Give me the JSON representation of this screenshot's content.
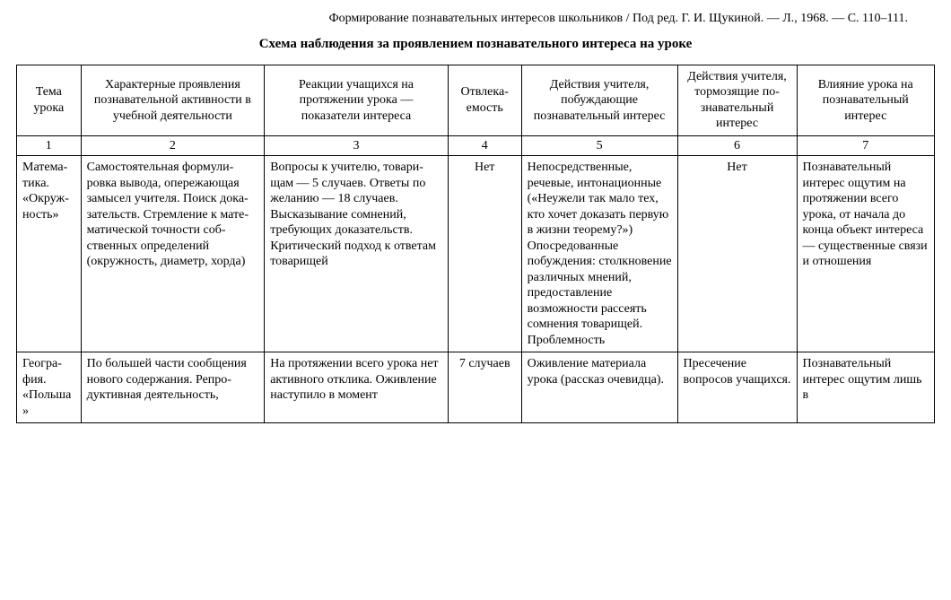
{
  "citation": "Формирование познавательных интересов школьников / Под ред. Г. И. Щукиной. — Л., 1968. — С. 110–111.",
  "title": "Схема наблюдения за проявлением познавательного интереса на уроке",
  "headers": {
    "h1": "Тема урока",
    "h2": "Характерные проявления познавательной активности в учебной деятельности",
    "h3": "Реакции учащихся на протяжении урока — показатели интереса",
    "h4": "Отвлека­емость",
    "h5": "Действия учителя, побуждающие познавательный интерес",
    "h6": "Действия учителя, тор­мозящие по­знавательный интерес",
    "h7": "Влияние урока на познаватель­ный интерес"
  },
  "nums": {
    "n1": "1",
    "n2": "2",
    "n3": "3",
    "n4": "4",
    "n5": "5",
    "n6": "6",
    "n7": "7"
  },
  "rows": [
    {
      "c1": "Матема­тика. «Окруж­ность»",
      "c2": "Самостоятельная формули­ровка вывода, опережающая замысел учителя. Поиск дока­зательств. Стремление к мате­матической точности соб­ственных определений (окружность, диаметр, хорда)",
      "c3": "Вопросы к учителю, товари­щам — 5 случаев. Ответы по желанию — 18 случаев. Высказывание сомнений, требующих доказательств. Критический подход к ответам товарищей",
      "c4": "Нет",
      "c5": "Непосредствен­ные, речевые, интонационные («Неужели так мало тех, кто хочет доказать первую в жизни теорему?») Опосредованные побуждения: столкновение раз­личных мнений, предоставление возможности рас­сеять сомнения товарищей. Проб­лемность",
      "c6": "Нет",
      "c7": "Познаватель­ный интерес ощутим на про­тяжении всего урока, от нача­ла до конца объект интере­са — существен­ные связи и отношения"
    },
    {
      "c1": "Геогра­фия. «Польша»",
      "c2": "По большей части сообщения нового содержания. Репро­дуктивная деятельность,",
      "c3": "На протяжении всего урока нет активного отклика. Ожив­ление наступило в момент",
      "c4": "7 случаев",
      "c5": "Оживление мате­риала урока (рас­сказ очевидца).",
      "c6": "Пресечение вопросов учащихся.",
      "c7": "Познаватель­ный интерес ощутим лишь в"
    }
  ]
}
